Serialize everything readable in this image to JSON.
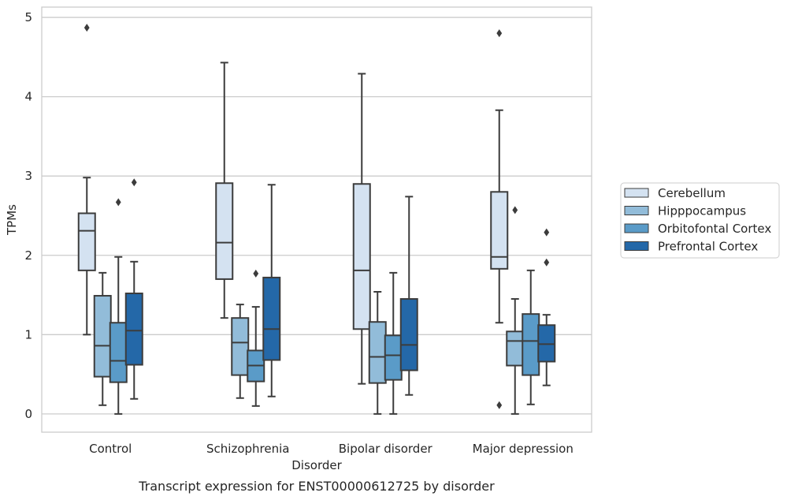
{
  "chart_data": {
    "type": "boxplot",
    "caption": "Transcript expression for ENST00000612725 by disorder",
    "xlabel": "Disorder",
    "ylabel": "TPMs",
    "ylim": [
      -0.23,
      5.13
    ],
    "yticks": [
      0,
      1,
      2,
      3,
      4,
      5
    ],
    "grid": "horizontal",
    "legend_position": "right",
    "categories": [
      "Control",
      "Schizophrenia",
      "Bipolar disorder",
      "Major depression"
    ],
    "series": [
      {
        "name": "Cerebellum",
        "color": "#d4e2f1",
        "boxes": [
          {
            "whislo": 1.0,
            "q1": 1.81,
            "med": 2.31,
            "q3": 2.53,
            "whishi": 2.98,
            "fliers": [
              4.87
            ]
          },
          {
            "whislo": 1.21,
            "q1": 1.7,
            "med": 2.16,
            "q3": 2.91,
            "whishi": 4.43,
            "fliers": []
          },
          {
            "whislo": 0.38,
            "q1": 1.07,
            "med": 1.81,
            "q3": 2.9,
            "whishi": 4.29,
            "fliers": []
          },
          {
            "whislo": 1.15,
            "q1": 1.83,
            "med": 1.98,
            "q3": 2.8,
            "whishi": 3.83,
            "fliers": [
              0.11,
              4.8
            ]
          }
        ]
      },
      {
        "name": "Hipppocampus",
        "color": "#92bcd9",
        "boxes": [
          {
            "whislo": 0.11,
            "q1": 0.47,
            "med": 0.86,
            "q3": 1.49,
            "whishi": 1.78,
            "fliers": []
          },
          {
            "whislo": 0.2,
            "q1": 0.49,
            "med": 0.9,
            "q3": 1.21,
            "whishi": 1.38,
            "fliers": []
          },
          {
            "whislo": 0.0,
            "q1": 0.39,
            "med": 0.72,
            "q3": 1.16,
            "whishi": 1.54,
            "fliers": []
          },
          {
            "whislo": 0.0,
            "q1": 0.61,
            "med": 0.92,
            "q3": 1.04,
            "whishi": 1.45,
            "fliers": [
              2.57
            ]
          }
        ]
      },
      {
        "name": "Orbitofontal Cortex",
        "color": "#5a9bc8",
        "boxes": [
          {
            "whislo": 0.0,
            "q1": 0.4,
            "med": 0.67,
            "q3": 1.15,
            "whishi": 1.98,
            "fliers": [
              2.67
            ]
          },
          {
            "whislo": 0.1,
            "q1": 0.41,
            "med": 0.61,
            "q3": 0.8,
            "whishi": 1.35,
            "fliers": [
              1.77
            ]
          },
          {
            "whislo": 0.0,
            "q1": 0.43,
            "med": 0.74,
            "q3": 0.99,
            "whishi": 1.78,
            "fliers": []
          },
          {
            "whislo": 0.12,
            "q1": 0.49,
            "med": 0.92,
            "q3": 1.26,
            "whishi": 1.81,
            "fliers": []
          }
        ]
      },
      {
        "name": "Prefrontal Cortex",
        "color": "#2468a8",
        "boxes": [
          {
            "whislo": 0.19,
            "q1": 0.62,
            "med": 1.05,
            "q3": 1.52,
            "whishi": 1.92,
            "fliers": [
              2.92
            ]
          },
          {
            "whislo": 0.22,
            "q1": 0.68,
            "med": 1.07,
            "q3": 1.72,
            "whishi": 2.89,
            "fliers": []
          },
          {
            "whislo": 0.24,
            "q1": 0.55,
            "med": 0.87,
            "q3": 1.45,
            "whishi": 2.74,
            "fliers": []
          },
          {
            "whislo": 0.36,
            "q1": 0.66,
            "med": 0.88,
            "q3": 1.12,
            "whishi": 1.25,
            "fliers": [
              1.91,
              2.29
            ]
          }
        ]
      }
    ]
  }
}
